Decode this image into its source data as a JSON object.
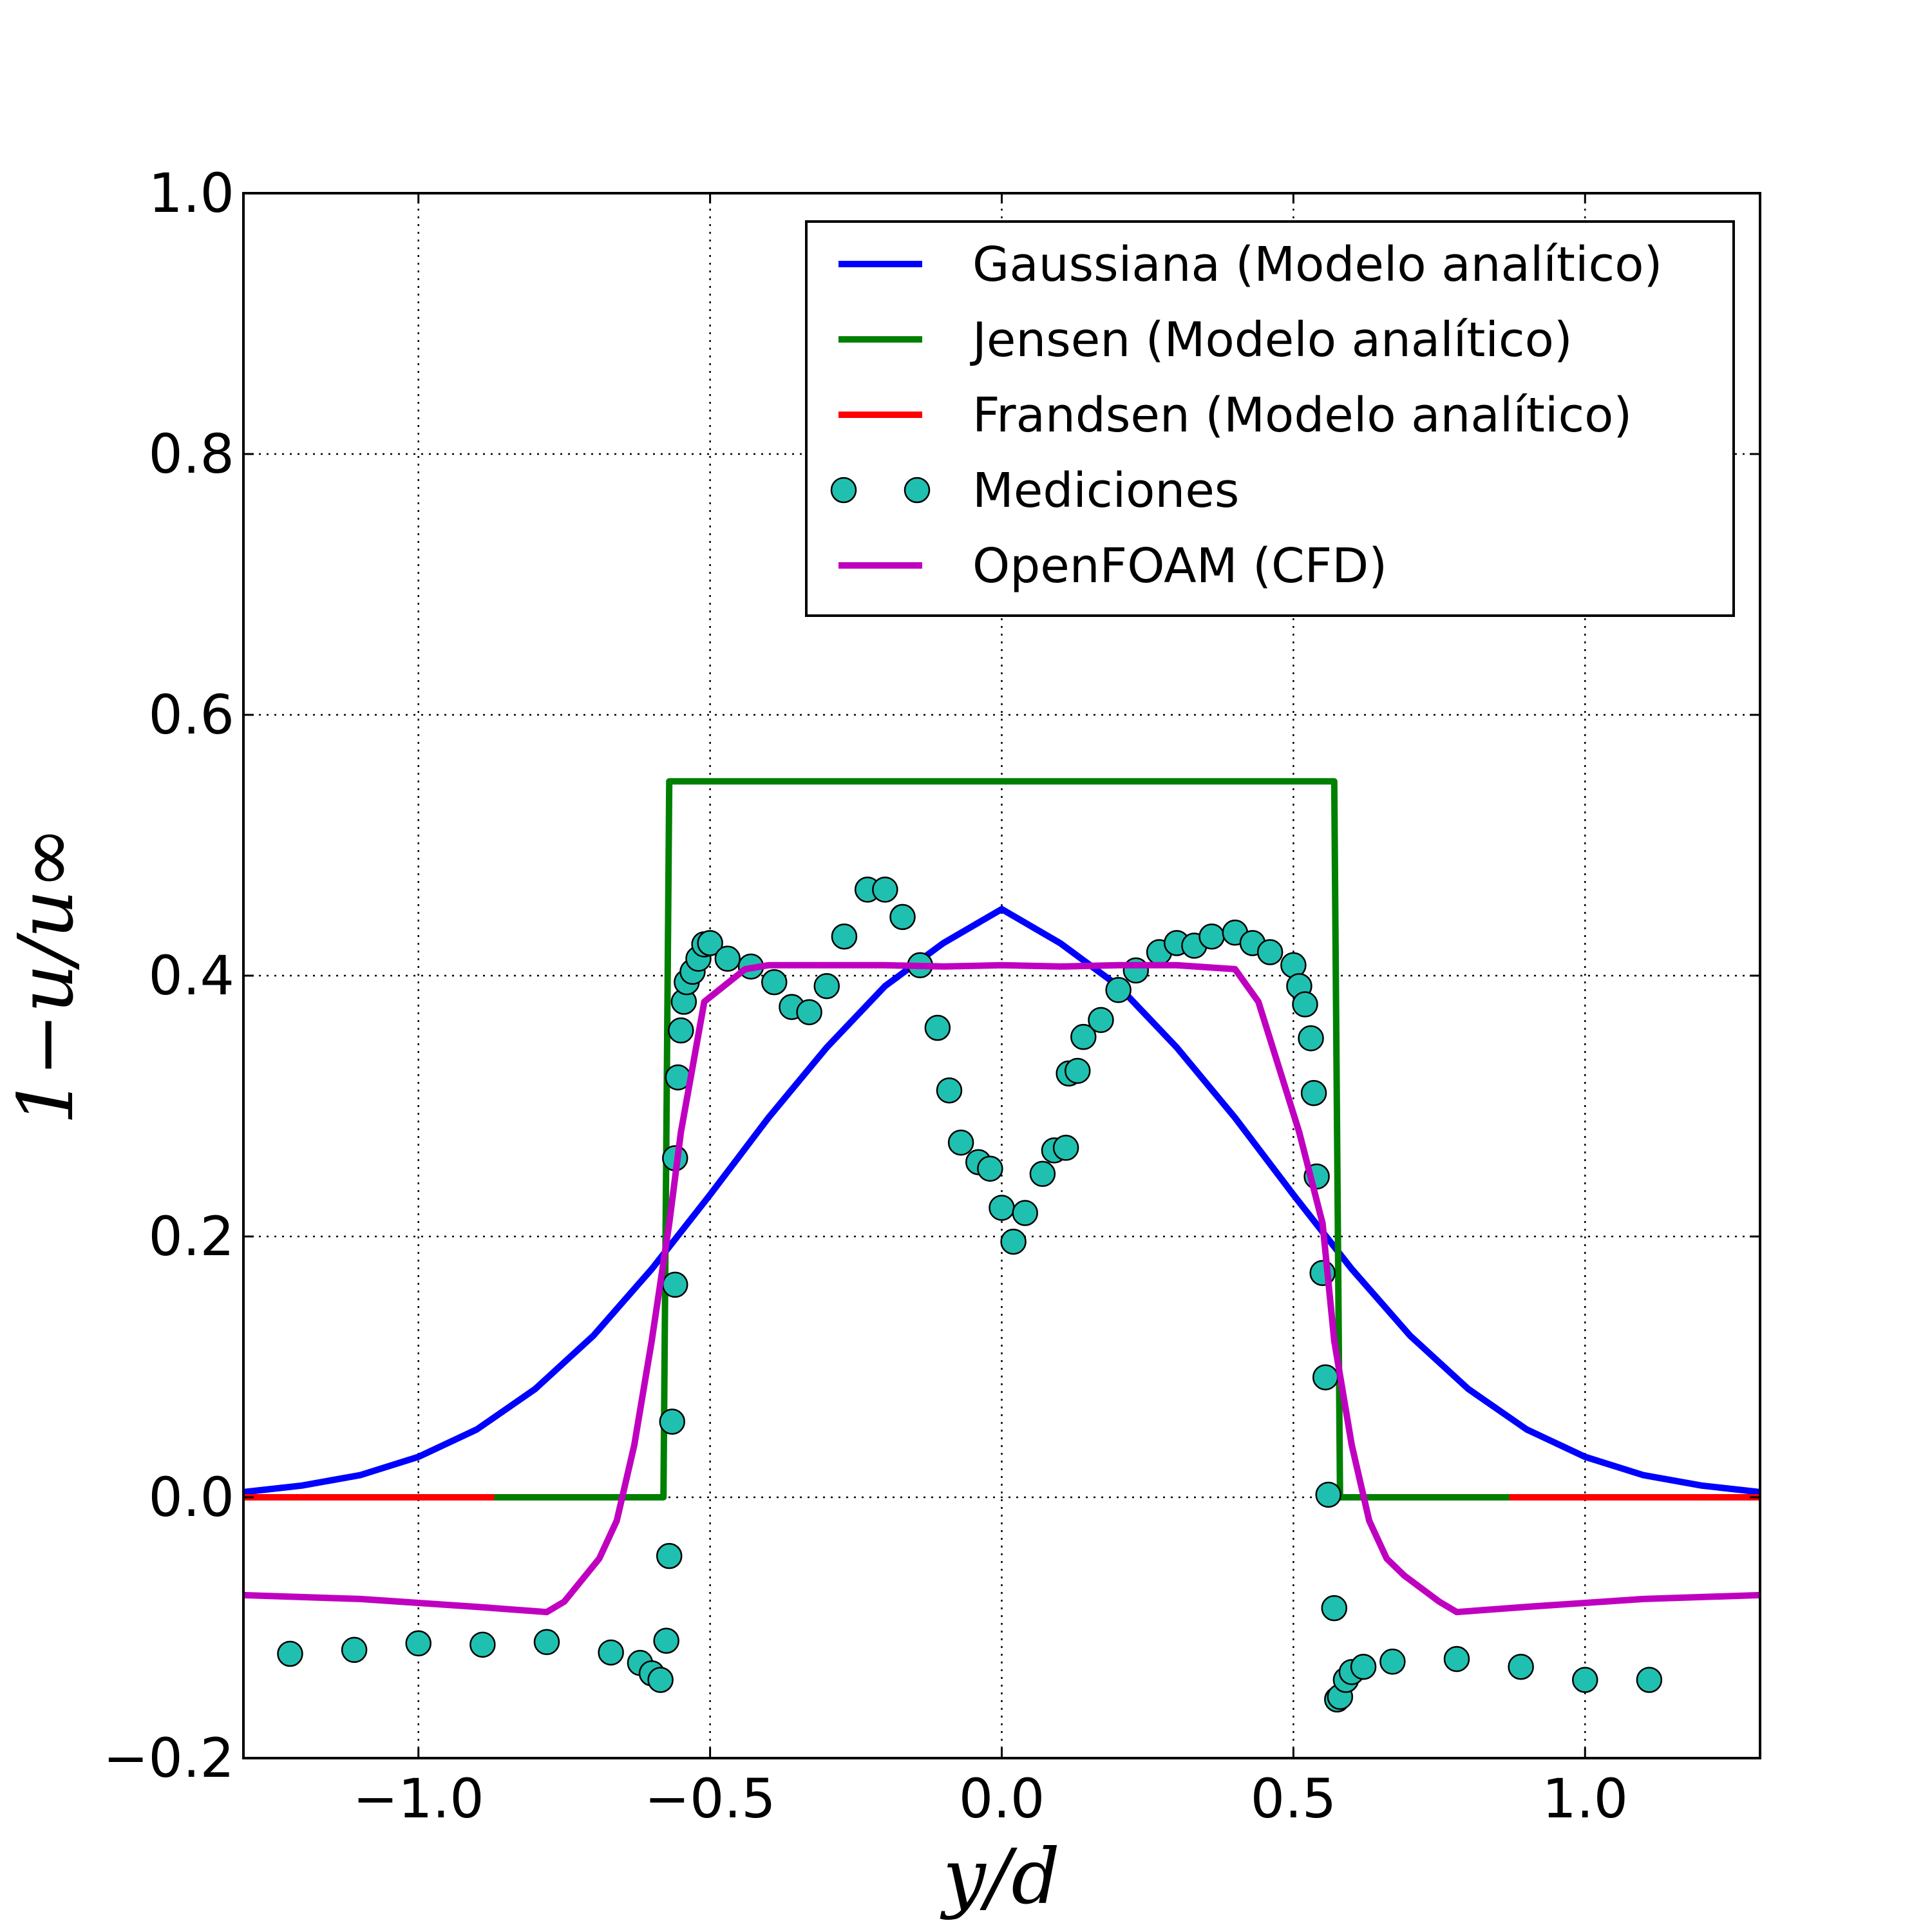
{
  "chart_data": {
    "type": "line",
    "xlabel": "y/d",
    "ylabel": "1−u/u∞",
    "xlim": [
      -1.3,
      1.3
    ],
    "ylim": [
      -0.2,
      1.0
    ],
    "xticks": [
      -1.0,
      -0.5,
      0.0,
      0.5,
      1.0
    ],
    "xtick_labels": [
      "−1.0",
      "−0.5",
      "0.0",
      "0.5",
      "1.0"
    ],
    "yticks": [
      -0.2,
      0.0,
      0.2,
      0.4,
      0.6,
      0.8,
      1.0
    ],
    "ytick_labels": [
      "−0.2",
      "0.0",
      "0.2",
      "0.4",
      "0.6",
      "0.8",
      "1.0"
    ],
    "grid": true,
    "legend_position": "top-right",
    "series": [
      {
        "name": "Gaussiana (Modelo analítico)",
        "kind": "line",
        "color": "#0000ff",
        "x": [
          -1.3,
          -1.2,
          -1.1,
          -1.0,
          -0.9,
          -0.8,
          -0.7,
          -0.6,
          -0.5,
          -0.4,
          -0.3,
          -0.2,
          -0.1,
          0.0,
          0.1,
          0.2,
          0.3,
          0.4,
          0.5,
          0.6,
          0.7,
          0.8,
          0.9,
          1.0,
          1.1,
          1.2,
          1.3
        ],
        "y": [
          0.004,
          0.009,
          0.017,
          0.031,
          0.052,
          0.083,
          0.124,
          0.175,
          0.232,
          0.291,
          0.345,
          0.392,
          0.425,
          0.451,
          0.425,
          0.392,
          0.345,
          0.291,
          0.232,
          0.175,
          0.124,
          0.083,
          0.052,
          0.031,
          0.017,
          0.009,
          0.004
        ]
      },
      {
        "name": "Jensen (Modelo analítico)",
        "kind": "line",
        "color": "#008000",
        "x": [
          -1.3,
          -0.58,
          -0.57,
          0.57,
          0.58,
          1.3
        ],
        "y": [
          0.0,
          0.0,
          0.549,
          0.549,
          0.0,
          0.0
        ]
      },
      {
        "name": "Frandsen (Modelo analítico)",
        "kind": "line",
        "color": "#ff0000",
        "x": [
          -1.3,
          -0.87,
          null,
          0.87,
          1.3
        ],
        "y": [
          0.0,
          0.0,
          null,
          0.0,
          0.0
        ]
      },
      {
        "name": "Mediciones",
        "kind": "scatter",
        "color": "#20c0b0",
        "x": [
          -1.22,
          -1.11,
          -1.0,
          -0.89,
          -0.78,
          -0.67,
          -0.62,
          -0.6,
          -0.585,
          -0.575,
          -0.57,
          -0.565,
          -0.56,
          -0.56,
          -0.555,
          -0.55,
          -0.545,
          -0.54,
          -0.53,
          -0.52,
          -0.51,
          -0.5,
          -0.47,
          -0.43,
          -0.39,
          -0.36,
          -0.33,
          -0.3,
          -0.27,
          -0.23,
          -0.2,
          -0.17,
          -0.14,
          -0.11,
          -0.09,
          -0.07,
          -0.04,
          -0.02,
          0.0,
          0.02,
          0.04,
          0.07,
          0.09,
          0.11,
          0.115,
          0.13,
          0.14,
          0.17,
          0.2,
          0.23,
          0.27,
          0.3,
          0.33,
          0.36,
          0.4,
          0.43,
          0.46,
          0.5,
          0.51,
          0.52,
          0.53,
          0.535,
          0.54,
          0.55,
          0.555,
          0.56,
          0.57,
          0.575,
          0.58,
          0.59,
          0.6,
          0.62,
          0.67,
          0.78,
          0.89,
          1.0,
          1.11
        ],
        "y": [
          -0.12,
          -0.117,
          -0.112,
          -0.113,
          -0.111,
          -0.119,
          -0.127,
          -0.135,
          -0.14,
          -0.11,
          -0.045,
          0.058,
          0.163,
          0.26,
          0.322,
          0.358,
          0.38,
          0.395,
          0.403,
          0.413,
          0.424,
          0.425,
          0.413,
          0.407,
          0.395,
          0.376,
          0.372,
          0.392,
          0.43,
          0.466,
          0.466,
          0.445,
          0.408,
          0.36,
          0.312,
          0.272,
          0.257,
          0.252,
          0.222,
          0.196,
          0.218,
          0.248,
          0.266,
          0.268,
          0.325,
          0.327,
          0.353,
          0.366,
          0.389,
          0.404,
          0.418,
          0.425,
          0.423,
          0.43,
          0.433,
          0.425,
          0.418,
          0.408,
          0.392,
          0.378,
          0.352,
          0.31,
          0.246,
          0.172,
          0.092,
          0.002,
          -0.085,
          -0.155,
          -0.153,
          -0.14,
          -0.134,
          -0.13,
          -0.126,
          -0.124,
          -0.13,
          -0.14,
          -0.14
        ]
      },
      {
        "name": "OpenFOAM (CFD)",
        "kind": "line",
        "color": "#c000c0",
        "x": [
          -1.3,
          -1.1,
          -0.9,
          -0.78,
          -0.75,
          -0.69,
          -0.66,
          -0.63,
          -0.6,
          -0.57,
          -0.55,
          -0.51,
          -0.44,
          -0.4,
          -0.3,
          -0.2,
          -0.1,
          0.0,
          0.1,
          0.2,
          0.3,
          0.4,
          0.44,
          0.51,
          0.55,
          0.57,
          0.6,
          0.63,
          0.66,
          0.69,
          0.75,
          0.78,
          0.9,
          1.1,
          1.3
        ],
        "y": [
          -0.075,
          -0.078,
          -0.084,
          -0.088,
          -0.08,
          -0.047,
          -0.018,
          0.04,
          0.12,
          0.21,
          0.28,
          0.38,
          0.405,
          0.408,
          0.408,
          0.408,
          0.407,
          0.408,
          0.407,
          0.408,
          0.408,
          0.405,
          0.38,
          0.28,
          0.21,
          0.12,
          0.04,
          -0.018,
          -0.047,
          -0.06,
          -0.08,
          -0.088,
          -0.084,
          -0.078,
          -0.075
        ]
      }
    ]
  }
}
